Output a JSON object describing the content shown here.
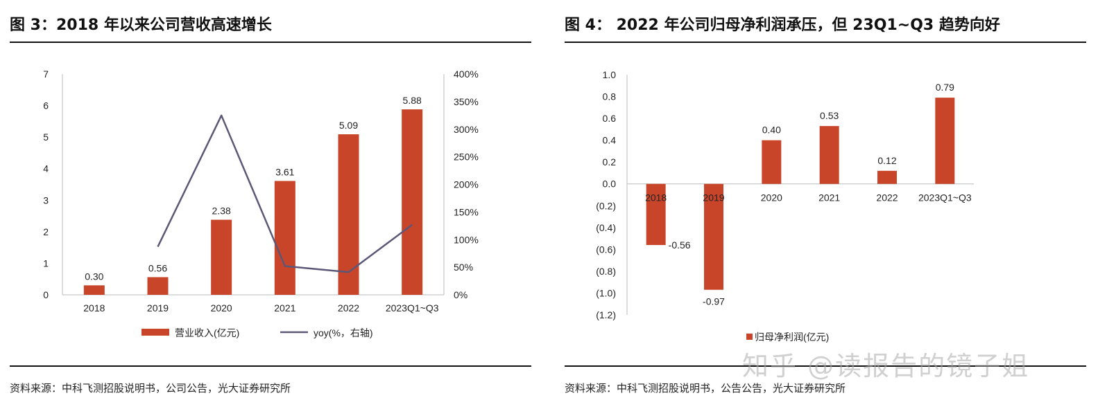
{
  "charts": [
    {
      "figure_title": "图 3：2018 年以来公司营收高速增长",
      "source": "资料来源：中科飞测招股说明书，公司公告，光大证券研究所",
      "legend_bar": "营业收入(亿元)",
      "legend_line": "yoy(%，右轴)"
    },
    {
      "figure_title": "图 4：  2022 年公司归母净利润承压，但 23Q1~Q3 趋势向好",
      "source": "资料来源：中科飞测招股说明书，公告公告，光大证券研究所",
      "legend_bar": "归母净利润(亿元)"
    }
  ],
  "watermark": "知乎 @读报告的镜子姐",
  "colors": {
    "bar": "#C8452A",
    "line": "#5B5777",
    "axis": "#BBBBBB"
  },
  "chart_data": [
    {
      "type": "bar",
      "title": "图 3：2018 年以来公司营收高速增长",
      "categories": [
        "2018",
        "2019",
        "2020",
        "2021",
        "2022",
        "2023Q1~Q3"
      ],
      "series": [
        {
          "name": "营业收入(亿元)",
          "type": "bar",
          "axis": "left",
          "values": [
            0.3,
            0.56,
            2.38,
            3.61,
            5.09,
            5.88
          ]
        },
        {
          "name": "yoy(%，右轴)",
          "type": "line",
          "axis": "right",
          "values": [
            null,
            87,
            325,
            52,
            41,
            127
          ]
        }
      ],
      "data_labels": [
        "0.30",
        "0.56",
        "2.38",
        "3.61",
        "5.09",
        "5.88"
      ],
      "ylim": [
        0,
        7
      ],
      "yticks": [
        "0",
        "1",
        "2",
        "3",
        "4",
        "5",
        "6",
        "7"
      ],
      "y2lim": [
        0,
        400
      ],
      "y2ticks": [
        "0%",
        "50%",
        "100%",
        "150%",
        "200%",
        "250%",
        "300%",
        "350%",
        "400%"
      ],
      "legend": "bottom",
      "grid": false
    },
    {
      "type": "bar",
      "title": "图 4：  2022 年公司归母净利润承压，但 23Q1~Q3 趋势向好",
      "categories": [
        "2018",
        "2019",
        "2020",
        "2021",
        "2022",
        "2023Q1~Q3"
      ],
      "series": [
        {
          "name": "归母净利润(亿元)",
          "values": [
            -0.56,
            -0.97,
            0.4,
            0.53,
            0.12,
            0.79
          ]
        }
      ],
      "data_labels": [
        "-0.56",
        "-0.97",
        "0.40",
        "0.53",
        "0.12",
        "0.79"
      ],
      "ylim": [
        -1.2,
        1.0
      ],
      "yticks": [
        "(1.2)",
        "(1.0)",
        "(0.8)",
        "(0.6)",
        "(0.4)",
        "(0.2)",
        "0.0",
        "0.2",
        "0.4",
        "0.6",
        "0.8",
        "1.0"
      ],
      "legend": "bottom",
      "grid": false
    }
  ]
}
